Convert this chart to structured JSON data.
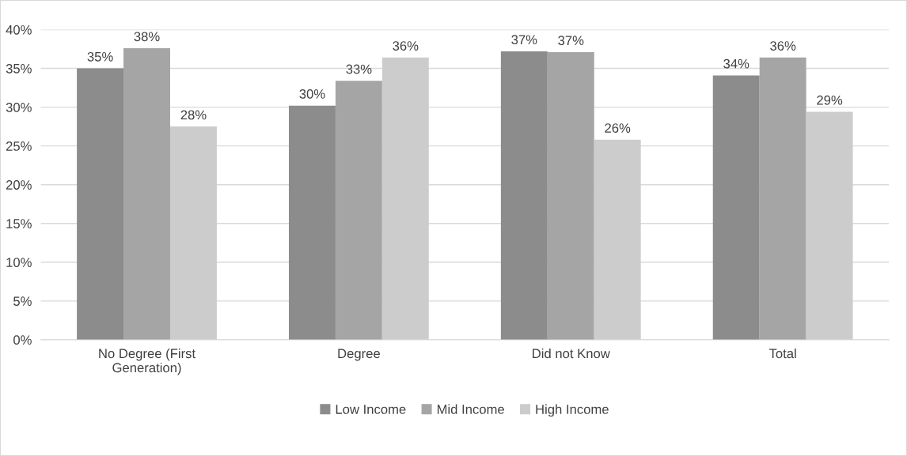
{
  "chart_data": {
    "type": "bar",
    "categories": [
      "No Degree (First\nGeneration)",
      "Degree",
      "Did not Know",
      "Total"
    ],
    "series": [
      {
        "name": "Low Income",
        "color": "#8c8c8c",
        "values": [
          35.0,
          30.2,
          37.2,
          34.1
        ],
        "value_labels": [
          "35%",
          "30%",
          "37%",
          "34%"
        ]
      },
      {
        "name": "Mid Income",
        "color": "#a5a5a5",
        "values": [
          37.6,
          33.4,
          37.1,
          36.4
        ],
        "value_labels": [
          "38%",
          "33%",
          "37%",
          "36%"
        ]
      },
      {
        "name": "High Income",
        "color": "#cccccc",
        "values": [
          27.5,
          36.4,
          25.8,
          29.4
        ],
        "value_labels": [
          "28%",
          "36%",
          "26%",
          "29%"
        ]
      }
    ],
    "ylim": [
      0,
      40
    ],
    "yticks": [
      {
        "value": 0,
        "label": "0%"
      },
      {
        "value": 5,
        "label": "5%"
      },
      {
        "value": 10,
        "label": "10%"
      },
      {
        "value": 15,
        "label": "15%"
      },
      {
        "value": 20,
        "label": "20%"
      },
      {
        "value": 25,
        "label": "25%"
      },
      {
        "value": 30,
        "label": "30%"
      },
      {
        "value": 35,
        "label": "35%"
      },
      {
        "value": 40,
        "label": "40%"
      }
    ],
    "grid": "y",
    "legend": "bottom"
  }
}
